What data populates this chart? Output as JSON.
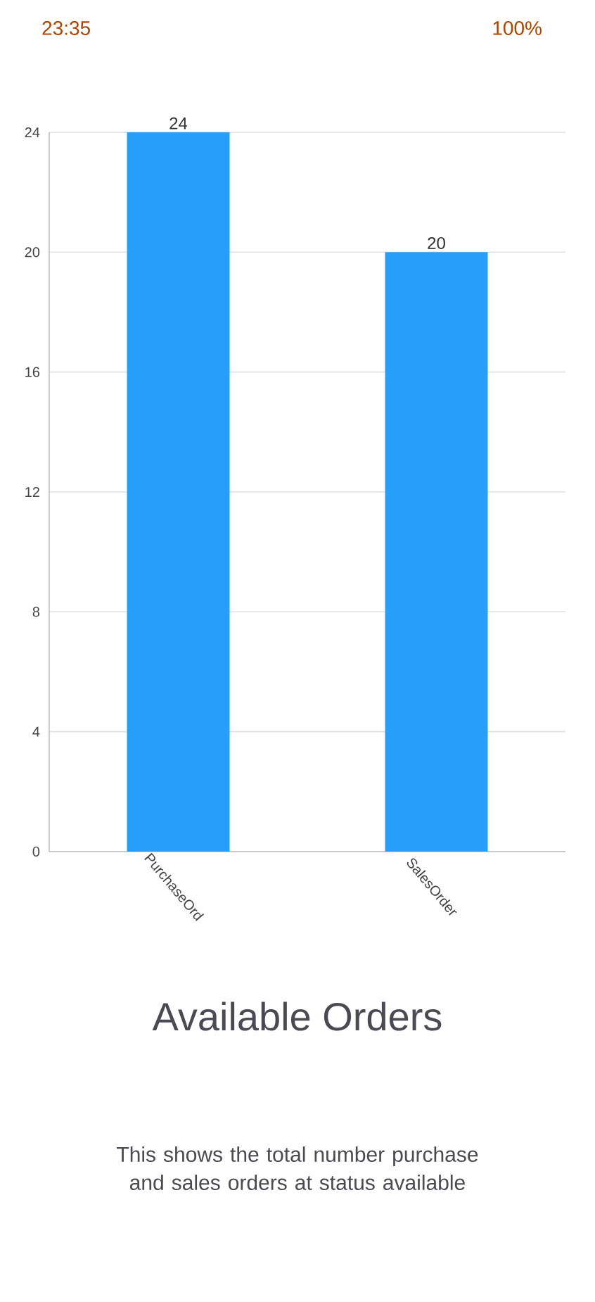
{
  "chart_data": {
    "type": "bar",
    "title": "Available Orders",
    "subtitle": "This shows the total number purchase and sales orders at status available",
    "annotations": [
      "23:35",
      "100%"
    ],
    "categories": [
      "PurchaseOrd",
      "SalesOrder"
    ],
    "values": [
      24,
      20
    ],
    "color": "#269ffb",
    "ylim": [
      0,
      24
    ],
    "yticks": [
      0,
      4,
      8,
      12,
      16,
      20,
      24
    ],
    "grid": "y",
    "data_labels": true
  }
}
